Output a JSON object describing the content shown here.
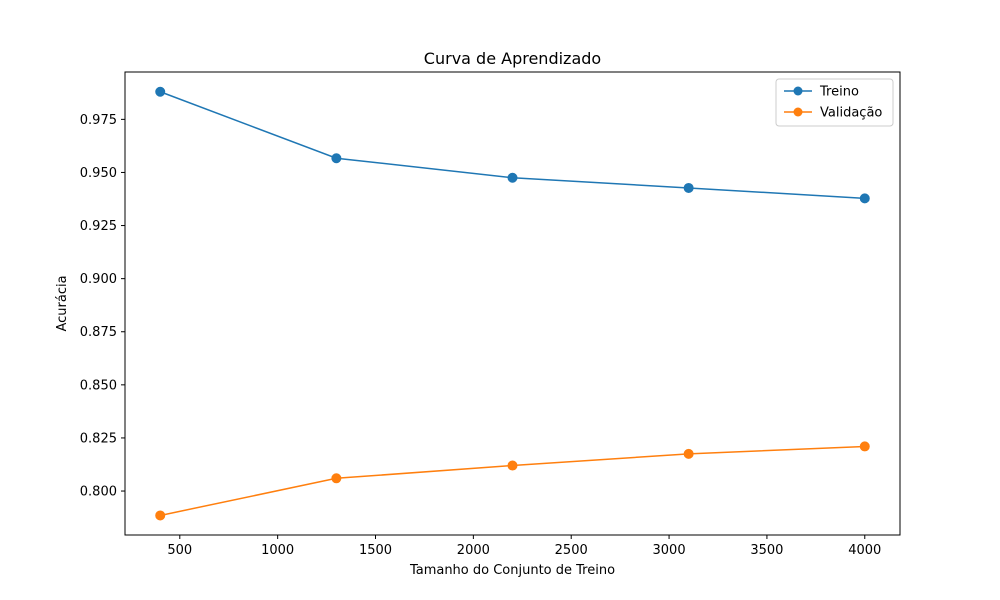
{
  "chart_data": {
    "type": "line",
    "title": "Curva de Aprendizado",
    "xlabel": "Tamanho do Conjunto de Treino",
    "ylabel": "Acurácia",
    "x": [
      400,
      1300,
      2200,
      3100,
      4000
    ],
    "xlim": [
      220,
      4180
    ],
    "ylim": [
      0.7793,
      0.9973
    ],
    "xticks": [
      500,
      1000,
      1500,
      2000,
      2500,
      3000,
      3500,
      4000
    ],
    "yticks": [
      0.8,
      0.825,
      0.85,
      0.875,
      0.9,
      0.925,
      0.95,
      0.975
    ],
    "xtick_labels": [
      "500",
      "1000",
      "1500",
      "2000",
      "2500",
      "3000",
      "3500",
      "4000"
    ],
    "ytick_labels": [
      "0.800",
      "0.825",
      "0.850",
      "0.875",
      "0.900",
      "0.925",
      "0.950",
      "0.975"
    ],
    "grid": false,
    "legend_position": "top-right",
    "series": [
      {
        "name": "Treino",
        "color": "#1f77b4",
        "marker": "circle",
        "values": [
          0.988,
          0.9567,
          0.9475,
          0.9427,
          0.9378
        ]
      },
      {
        "name": "Validação",
        "color": "#ff7f0e",
        "marker": "circle",
        "values": [
          0.7885,
          0.806,
          0.812,
          0.8175,
          0.821
        ]
      }
    ]
  }
}
